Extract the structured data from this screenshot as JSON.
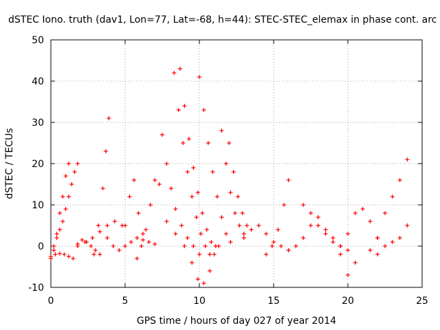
{
  "chart_data": {
    "type": "scatter",
    "title": "dSTEC Iono. truth (dav1, Lon=77, Lat=-68, h=44): STEC-STEC_elemax in phase cont. arc",
    "xlabel": "GPS time / hours of day 027 of year 2014",
    "ylabel": "dSTEC  / TECUs",
    "xlim": [
      0,
      25
    ],
    "ylim": [
      -10,
      50
    ],
    "xticks": [
      0,
      5,
      10,
      15,
      20,
      25
    ],
    "yticks": [
      -10,
      0,
      10,
      20,
      30,
      40,
      50
    ],
    "grid": true,
    "marker": "+",
    "color": "#ff0000",
    "series": [
      {
        "x": [
          0.0,
          0.3,
          0.6,
          0.9,
          1.2,
          1.5,
          1.8,
          2.1,
          2.4,
          2.7,
          3.0,
          3.3
        ],
        "y": [
          -2.5,
          -2.0,
          -1.8,
          -2.0,
          -2.5,
          -3.0,
          0.5,
          1.5,
          1.0,
          0.0,
          -1.0,
          -2.0
        ]
      },
      {
        "x": [
          0.0,
          0.2,
          0.4,
          0.6,
          0.8,
          1.0,
          1.2,
          1.4,
          1.6,
          1.8
        ],
        "y": [
          -3.0,
          0.0,
          2.0,
          4.0,
          6.0,
          9.0,
          12.0,
          15.0,
          18.0,
          20.0
        ]
      },
      {
        "x": [
          0.2,
          0.4,
          0.6,
          0.8,
          1.0,
          1.2
        ],
        "y": [
          -1.0,
          3.0,
          8.0,
          12.0,
          17.0,
          20.0
        ]
      },
      {
        "x": [
          1.8,
          2.3,
          2.8,
          3.3,
          3.8,
          4.3,
          4.8
        ],
        "y": [
          0.0,
          1.0,
          2.0,
          3.5,
          5.0,
          6.0,
          5.0
        ]
      },
      {
        "x": [
          2.9,
          3.2,
          3.5,
          3.7,
          3.9
        ],
        "y": [
          -2.0,
          5.0,
          14.0,
          23.0,
          31.0
        ]
      },
      {
        "x": [
          3.8,
          4.2,
          4.6,
          5.0,
          5.4,
          5.8,
          6.2,
          6.6,
          7.0
        ],
        "y": [
          2.0,
          0.0,
          -1.0,
          0.0,
          1.0,
          2.0,
          1.5,
          1.0,
          0.5
        ]
      },
      {
        "x": [
          5.0,
          5.3,
          5.6,
          5.9,
          6.2
        ],
        "y": [
          5.0,
          12.0,
          16.0,
          8.0,
          3.0
        ]
      },
      {
        "x": [
          5.8,
          6.1,
          6.4,
          6.7,
          7.0,
          7.3
        ],
        "y": [
          -3.0,
          0.0,
          4.0,
          10.0,
          16.0,
          15.0
        ]
      },
      {
        "x": [
          7.5,
          7.8,
          8.1,
          8.4,
          8.8,
          9.2,
          9.6,
          10.0
        ],
        "y": [
          27.0,
          20.0,
          14.0,
          9.0,
          5.0,
          2.0,
          0.0,
          -2.0
        ]
      },
      {
        "x": [
          8.3,
          8.6,
          8.9,
          9.2,
          9.5,
          9.8,
          10.1,
          10.4,
          10.7
        ],
        "y": [
          42.0,
          33.0,
          25.0,
          18.0,
          12.0,
          7.0,
          3.0,
          0.0,
          -2.0
        ]
      },
      {
        "x": [
          8.7,
          9.0,
          9.3,
          9.6,
          9.9,
          10.2,
          10.5,
          10.8,
          11.1
        ],
        "y": [
          43.0,
          34.0,
          26.0,
          19.0,
          13.0,
          8.0,
          4.0,
          1.0,
          0.0
        ]
      },
      {
        "x": [
          10.0,
          10.3,
          10.6,
          10.9,
          11.2,
          11.5,
          11.8,
          12.1
        ],
        "y": [
          41.0,
          33.0,
          25.0,
          18.0,
          12.0,
          7.0,
          3.0,
          1.0
        ]
      },
      {
        "x": [
          7.8,
          8.4,
          9.0,
          9.5,
          9.9,
          10.3,
          10.7,
          11.0,
          11.3
        ],
        "y": [
          6.0,
          3.0,
          0.0,
          -4.0,
          -8.0,
          -9.0,
          -6.0,
          -2.0,
          0.0
        ]
      },
      {
        "x": [
          11.5,
          11.8,
          12.1,
          12.4,
          12.7,
          13.0
        ],
        "y": [
          28.0,
          20.0,
          13.0,
          8.0,
          5.0,
          3.0
        ]
      },
      {
        "x": [
          12.0,
          12.3,
          12.6,
          12.9,
          13.2
        ],
        "y": [
          25.0,
          18.0,
          12.0,
          8.0,
          5.0
        ]
      },
      {
        "x": [
          13.0,
          13.5,
          14.0,
          14.5,
          15.0,
          15.5,
          16.0
        ],
        "y": [
          2.0,
          4.0,
          5.0,
          3.0,
          1.0,
          0.0,
          -1.0
        ]
      },
      {
        "x": [
          14.5,
          14.9,
          15.3,
          15.7,
          16.0
        ],
        "y": [
          -2.0,
          0.0,
          4.0,
          10.0,
          16.0
        ]
      },
      {
        "x": [
          16.0,
          16.5,
          17.0,
          17.5,
          18.0,
          18.5,
          19.0,
          19.5,
          20.0
        ],
        "y": [
          -1.0,
          0.0,
          2.0,
          5.0,
          7.0,
          4.0,
          2.0,
          0.0,
          -1.0
        ]
      },
      {
        "x": [
          17.0,
          17.5,
          18.0,
          18.5,
          19.0,
          19.5,
          20.0,
          20.5
        ],
        "y": [
          10.0,
          8.0,
          5.0,
          3.0,
          1.0,
          -2.0,
          -7.0,
          -4.0
        ]
      },
      {
        "x": [
          19.5,
          20.0,
          20.5,
          21.0,
          21.5,
          22.0
        ],
        "y": [
          0.0,
          3.0,
          8.0,
          9.0,
          6.0,
          2.0
        ]
      },
      {
        "x": [
          21.5,
          22.0,
          22.5,
          23.0,
          23.5,
          24.0
        ],
        "y": [
          -1.0,
          2.0,
          8.0,
          12.0,
          16.0,
          21.0
        ]
      },
      {
        "x": [
          22.0,
          22.5,
          23.0,
          23.5,
          24.0
        ],
        "y": [
          -2.0,
          0.0,
          1.0,
          2.0,
          5.0
        ]
      }
    ]
  }
}
